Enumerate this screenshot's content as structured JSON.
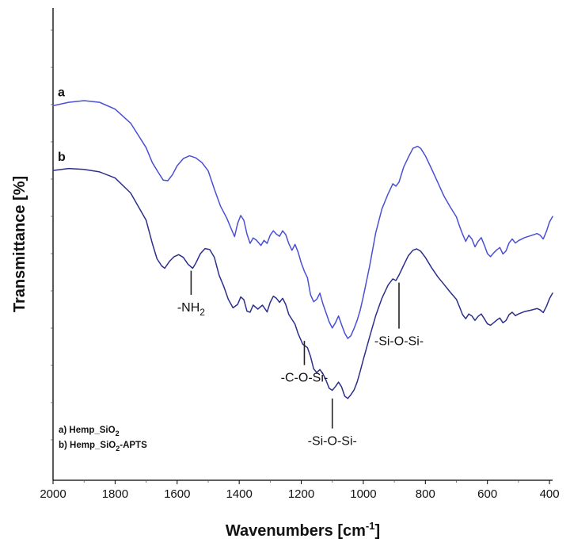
{
  "chart_data": {
    "type": "line",
    "title": "",
    "xlabel": "Wavenumbers [cm-1]",
    "xlabel_main": "Wavenumbers [cm",
    "xlabel_sup": "-1",
    "xlabel_end": "]",
    "ylabel": "Transmittance [%]",
    "xlim": [
      2000,
      390
    ],
    "ylim": [
      0,
      100
    ],
    "x_ticks": [
      2000,
      1800,
      1600,
      1400,
      1200,
      1000,
      800,
      600,
      400
    ],
    "y_ticks_labeled": false,
    "series": [
      {
        "name": "a",
        "label": "a",
        "legend_prefix": "a) ",
        "legend_main": "Hemp_SiO",
        "legend_sub": "2",
        "legend_tail": "",
        "color": "#4a4fd4",
        "points": [
          [
            2000,
            89.9
          ],
          [
            1950,
            90.9
          ],
          [
            1900,
            91.4
          ],
          [
            1850,
            90.9
          ],
          [
            1800,
            88.9
          ],
          [
            1750,
            84.8
          ],
          [
            1700,
            77.6
          ],
          [
            1680,
            73.2
          ],
          [
            1660,
            70.2
          ],
          [
            1645,
            68.1
          ],
          [
            1630,
            67.9
          ],
          [
            1615,
            69.7
          ],
          [
            1600,
            72.3
          ],
          [
            1580,
            74.4
          ],
          [
            1560,
            75.2
          ],
          [
            1540,
            74.6
          ],
          [
            1520,
            73.2
          ],
          [
            1500,
            70.8
          ],
          [
            1480,
            65.4
          ],
          [
            1460,
            60.4
          ],
          [
            1440,
            56.9
          ],
          [
            1425,
            53.6
          ],
          [
            1415,
            51.5
          ],
          [
            1405,
            55.4
          ],
          [
            1395,
            57.7
          ],
          [
            1385,
            56.3
          ],
          [
            1375,
            52.2
          ],
          [
            1365,
            49.5
          ],
          [
            1355,
            51.1
          ],
          [
            1345,
            50.5
          ],
          [
            1330,
            48.9
          ],
          [
            1320,
            50.4
          ],
          [
            1310,
            49.5
          ],
          [
            1300,
            51.9
          ],
          [
            1290,
            53.2
          ],
          [
            1280,
            52.2
          ],
          [
            1270,
            51.6
          ],
          [
            1260,
            53.2
          ],
          [
            1250,
            52.1
          ],
          [
            1240,
            49.4
          ],
          [
            1230,
            47.5
          ],
          [
            1220,
            49.2
          ],
          [
            1210,
            46.9
          ],
          [
            1200,
            43.8
          ],
          [
            1190,
            41.3
          ],
          [
            1180,
            39.4
          ],
          [
            1170,
            34.4
          ],
          [
            1160,
            32.4
          ],
          [
            1150,
            33.1
          ],
          [
            1140,
            34.9
          ],
          [
            1130,
            31.7
          ],
          [
            1120,
            29.1
          ],
          [
            1110,
            26.5
          ],
          [
            1100,
            24.7
          ],
          [
            1090,
            26.2
          ],
          [
            1080,
            28.2
          ],
          [
            1070,
            25.6
          ],
          [
            1060,
            23.2
          ],
          [
            1050,
            21.6
          ],
          [
            1040,
            22.4
          ],
          [
            1030,
            24.5
          ],
          [
            1020,
            26.9
          ],
          [
            1010,
            29.9
          ],
          [
            1000,
            33.9
          ],
          [
            980,
            42.7
          ],
          [
            960,
            52.6
          ],
          [
            940,
            59.6
          ],
          [
            920,
            64.1
          ],
          [
            905,
            67.0
          ],
          [
            895,
            66.3
          ],
          [
            885,
            67.5
          ],
          [
            870,
            71.9
          ],
          [
            855,
            74.8
          ],
          [
            840,
            77.4
          ],
          [
            825,
            78.0
          ],
          [
            815,
            77.4
          ],
          [
            800,
            75.2
          ],
          [
            780,
            71.4
          ],
          [
            760,
            67.4
          ],
          [
            740,
            63.4
          ],
          [
            720,
            60.2
          ],
          [
            700,
            57.3
          ],
          [
            690,
            54.6
          ],
          [
            680,
            52.2
          ],
          [
            670,
            50.1
          ],
          [
            660,
            51.9
          ],
          [
            650,
            50.8
          ],
          [
            640,
            48.5
          ],
          [
            630,
            50.1
          ],
          [
            620,
            51.2
          ],
          [
            610,
            49.0
          ],
          [
            600,
            46.5
          ],
          [
            590,
            45.6
          ],
          [
            580,
            46.7
          ],
          [
            570,
            47.6
          ],
          [
            560,
            48.3
          ],
          [
            550,
            46.4
          ],
          [
            540,
            47.3
          ],
          [
            530,
            49.7
          ],
          [
            520,
            50.8
          ],
          [
            510,
            49.6
          ],
          [
            500,
            50.3
          ],
          [
            480,
            51.2
          ],
          [
            460,
            51.8
          ],
          [
            440,
            52.4
          ],
          [
            430,
            51.9
          ],
          [
            420,
            50.8
          ],
          [
            410,
            53.0
          ],
          [
            400,
            55.8
          ],
          [
            390,
            57.4
          ]
        ]
      },
      {
        "name": "b",
        "label": "b",
        "legend_prefix": "b) ",
        "legend_main": "Hemp_SiO",
        "legend_sub": "2",
        "legend_tail": "-APTS",
        "color": "#2c2f8a",
        "points": [
          [
            2000,
            70.9
          ],
          [
            1950,
            71.5
          ],
          [
            1900,
            71.2
          ],
          [
            1850,
            70.5
          ],
          [
            1800,
            68.7
          ],
          [
            1750,
            64.3
          ],
          [
            1700,
            56.3
          ],
          [
            1680,
            49.5
          ],
          [
            1665,
            45.0
          ],
          [
            1650,
            42.9
          ],
          [
            1640,
            42.2
          ],
          [
            1625,
            44.2
          ],
          [
            1610,
            45.6
          ],
          [
            1595,
            46.2
          ],
          [
            1580,
            45.4
          ],
          [
            1565,
            43.4
          ],
          [
            1550,
            42.2
          ],
          [
            1540,
            43.7
          ],
          [
            1525,
            46.5
          ],
          [
            1510,
            48.0
          ],
          [
            1495,
            47.7
          ],
          [
            1480,
            45.4
          ],
          [
            1465,
            40.2
          ],
          [
            1450,
            36.9
          ],
          [
            1435,
            33.1
          ],
          [
            1420,
            30.6
          ],
          [
            1405,
            31.6
          ],
          [
            1395,
            33.8
          ],
          [
            1385,
            33.0
          ],
          [
            1375,
            29.6
          ],
          [
            1365,
            29.3
          ],
          [
            1355,
            31.4
          ],
          [
            1340,
            30.2
          ],
          [
            1325,
            31.4
          ],
          [
            1310,
            29.4
          ],
          [
            1300,
            32.2
          ],
          [
            1290,
            34.0
          ],
          [
            1280,
            33.4
          ],
          [
            1270,
            32.2
          ],
          [
            1260,
            33.4
          ],
          [
            1250,
            31.6
          ],
          [
            1240,
            28.6
          ],
          [
            1230,
            27.2
          ],
          [
            1220,
            25.8
          ],
          [
            1210,
            23.0
          ],
          [
            1195,
            19.9
          ],
          [
            1180,
            18.9
          ],
          [
            1170,
            16.3
          ],
          [
            1160,
            12.7
          ],
          [
            1150,
            11.6
          ],
          [
            1140,
            12.5
          ],
          [
            1130,
            11.2
          ],
          [
            1120,
            9.3
          ],
          [
            1110,
            7.0
          ],
          [
            1100,
            6.4
          ],
          [
            1090,
            7.5
          ],
          [
            1080,
            8.8
          ],
          [
            1070,
            7.4
          ],
          [
            1060,
            4.7
          ],
          [
            1050,
            4.0
          ],
          [
            1040,
            5.1
          ],
          [
            1030,
            6.5
          ],
          [
            1020,
            8.8
          ],
          [
            1010,
            12.0
          ],
          [
            1000,
            15.4
          ],
          [
            980,
            22.0
          ],
          [
            960,
            28.3
          ],
          [
            940,
            33.4
          ],
          [
            920,
            37.3
          ],
          [
            905,
            39.1
          ],
          [
            895,
            38.6
          ],
          [
            885,
            40.2
          ],
          [
            870,
            43.1
          ],
          [
            855,
            45.9
          ],
          [
            840,
            47.5
          ],
          [
            828,
            47.9
          ],
          [
            815,
            47.2
          ],
          [
            800,
            45.4
          ],
          [
            780,
            42.4
          ],
          [
            760,
            39.7
          ],
          [
            740,
            37.5
          ],
          [
            720,
            35.2
          ],
          [
            700,
            33.1
          ],
          [
            690,
            30.9
          ],
          [
            680,
            28.6
          ],
          [
            670,
            27.4
          ],
          [
            660,
            28.8
          ],
          [
            650,
            28.2
          ],
          [
            640,
            26.9
          ],
          [
            630,
            28.1
          ],
          [
            620,
            28.8
          ],
          [
            610,
            27.4
          ],
          [
            600,
            25.9
          ],
          [
            590,
            25.5
          ],
          [
            580,
            26.2
          ],
          [
            570,
            27.0
          ],
          [
            560,
            27.6
          ],
          [
            550,
            26.2
          ],
          [
            540,
            26.9
          ],
          [
            530,
            28.6
          ],
          [
            520,
            29.3
          ],
          [
            510,
            28.3
          ],
          [
            500,
            28.8
          ],
          [
            480,
            29.5
          ],
          [
            460,
            29.9
          ],
          [
            440,
            30.4
          ],
          [
            430,
            30.0
          ],
          [
            420,
            29.2
          ],
          [
            410,
            31.0
          ],
          [
            400,
            33.3
          ],
          [
            390,
            34.9
          ]
        ]
      }
    ],
    "annotations": [
      {
        "id": "nh2",
        "text": "-NH",
        "sub": "2",
        "x": 1555,
        "y_from": 42.2,
        "y_to": 34.4,
        "label_pos": "below"
      },
      {
        "id": "c-o-si",
        "text": "-C-O-Si-",
        "sub": "",
        "x": 1190,
        "y_from": 21.6,
        "y_to": 13.8,
        "label_pos": "below"
      },
      {
        "id": "si-o-si-1",
        "text": "-Si-O-Si-",
        "sub": "",
        "x": 1100,
        "y_from": 4.7,
        "y_to": -4.8,
        "label_pos": "below"
      },
      {
        "id": "si-o-si-2",
        "text": "-Si-O-Si-",
        "sub": "",
        "x": 885,
        "y_from": 38.7,
        "y_to": 24.5,
        "label_pos": "below"
      }
    ],
    "legend_position": "bottom-left"
  }
}
